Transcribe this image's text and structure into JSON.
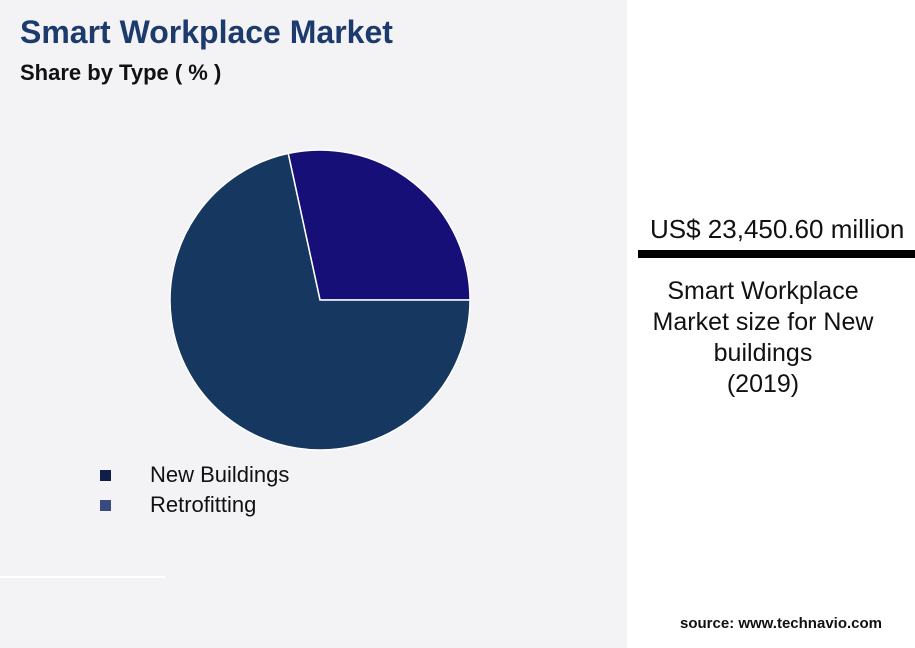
{
  "chart_data": {
    "type": "pie",
    "title": "Smart Workplace Market",
    "subtitle": "Share by Type ( % )",
    "slices": [
      {
        "name": "New Buildings",
        "value": 71.6,
        "color": "#163760",
        "legend_color": "#0f1f4a"
      },
      {
        "name": "Retrofitting",
        "value": 28.4,
        "color": "#160f78",
        "legend_color": "#3a4a80"
      }
    ],
    "legend_placement": "bottom-left"
  },
  "kpi": {
    "value": "US$ 23,450.60 million",
    "description_lines": [
      "Smart Workplace",
      "Market size for New",
      "buildings",
      "(2019)"
    ]
  },
  "source": "source: www.technavio.com"
}
